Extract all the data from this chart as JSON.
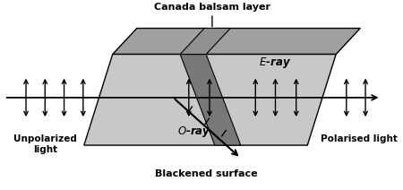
{
  "fig_width": 4.5,
  "fig_height": 2.12,
  "dpi": 100,
  "bg_color": "#ffffff",
  "prism_front_gray": "#c8c8c8",
  "prism_top_gray": "#a0a0a0",
  "balsam_color": "#787878",
  "balsam_top_color": "#909090",
  "title_canada": "Canada balsam layer",
  "label_unpolarized": "Unpolarized\nlight",
  "label_polarised": "Polarised light",
  "label_eray": "$\\mathit{E}$-ray",
  "label_oray": "$\\mathit{O}$-ray",
  "label_blackened": "Blackened surface"
}
